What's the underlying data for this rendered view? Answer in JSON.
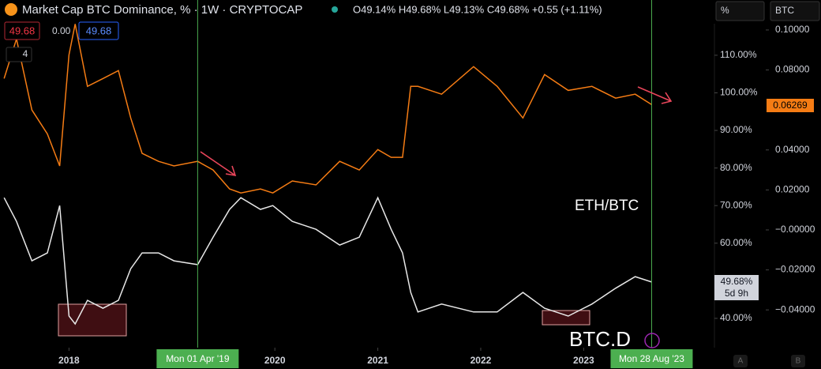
{
  "header": {
    "title": "Market Cap BTC Dominance, % · 1W · CRYPTOCAP",
    "ohlc": "O49.14% H49.68% L49.13% C49.68% +0.55 (+1.11%)",
    "legend_values": [
      "49.68",
      "0.00",
      "49.68"
    ],
    "indicator_count": "4",
    "controls": [
      "%",
      "BTC"
    ],
    "scale_buttons": [
      "A",
      "B"
    ]
  },
  "labels": {
    "btcd_price": "49.68%",
    "btcd_countdown": "5d 9h",
    "ethbtc_price": "0.06269"
  },
  "chart_data": {
    "type": "line",
    "x": [
      2017.37,
      2017.49,
      2017.64,
      2017.79,
      2017.91,
      2018.0,
      2018.06,
      2018.18,
      2018.33,
      2018.48,
      2018.6,
      2018.71,
      2018.87,
      2019.02,
      2019.25,
      2019.4,
      2019.56,
      2019.67,
      2019.86,
      2019.98,
      2020.17,
      2020.4,
      2020.63,
      2020.82,
      2021.0,
      2021.13,
      2021.24,
      2021.32,
      2021.39,
      2021.62,
      2021.93,
      2022.16,
      2022.41,
      2022.62,
      2022.85,
      2023.08,
      2023.31,
      2023.5,
      2023.66
    ],
    "series": [
      {
        "name": "BTC.D",
        "color": "#e8e8e8",
        "values": [
          72.1,
          65.8,
          55.3,
          57.4,
          70,
          40.6,
          38.5,
          44.8,
          42.7,
          44.8,
          53.2,
          57.4,
          57.4,
          55.3,
          54.3,
          61.6,
          69,
          72.1,
          69,
          70,
          65.8,
          63.7,
          59.5,
          61.6,
          72.1,
          63.7,
          57.4,
          46.9,
          41.7,
          43.8,
          41.7,
          41.7,
          46.9,
          42.7,
          40.6,
          43.8,
          48,
          51.1,
          49.68
        ]
      },
      {
        "name": "ETH/BTC",
        "color": "#f57c14",
        "axis": "y2",
        "values": [
          0.0757,
          0.0955,
          0.06,
          0.048,
          0.032,
          0.0876,
          0.103,
          0.0718,
          0.0757,
          0.0797,
          0.056,
          0.0383,
          0.0343,
          0.032,
          0.0343,
          0.03,
          0.0205,
          0.0185,
          0.0205,
          0.0185,
          0.0245,
          0.0225,
          0.0343,
          0.03,
          0.0402,
          0.0363,
          0.0363,
          0.0718,
          0.0718,
          0.0679,
          0.0817,
          0.0718,
          0.056,
          0.0777,
          0.0698,
          0.0718,
          0.0659,
          0.0679,
          0.06269
        ]
      }
    ],
    "xlim": [
      2017.33,
      2024.27
    ],
    "xticks": [
      2018,
      2020,
      2021,
      2022,
      2023
    ],
    "ylim": [
      32.2,
      124.7
    ],
    "yticks": [
      {
        "value": 40,
        "label": "40.00%"
      },
      {
        "value": 60,
        "label": "60.00%"
      },
      {
        "value": 70,
        "label": "70.00%"
      },
      {
        "value": 80,
        "label": "80.00%"
      },
      {
        "value": 90,
        "label": "90.00%"
      },
      {
        "value": 100,
        "label": "100.00%"
      },
      {
        "value": 110,
        "label": "110.00%"
      }
    ],
    "y2lim": [
      -0.0589,
      0.115
    ],
    "y2ticks": [
      {
        "value": 0.1,
        "label": "0.10000"
      },
      {
        "value": 0.08,
        "label": "0.08000"
      },
      {
        "value": 0.04,
        "label": "0.04000"
      },
      {
        "value": 0.02,
        "label": "0.02000"
      },
      {
        "value": 0,
        "label": "−0.00000"
      },
      {
        "value": -0.02,
        "label": "−0.02000"
      },
      {
        "value": -0.04,
        "label": "−0.04000"
      }
    ],
    "markers": [
      {
        "x": 2019.25,
        "label": "Mon 01 Apr '19"
      },
      {
        "x": 2023.66,
        "label": "Mon 28 Aug '23"
      }
    ],
    "marker_color": "#4caf50"
  }
}
